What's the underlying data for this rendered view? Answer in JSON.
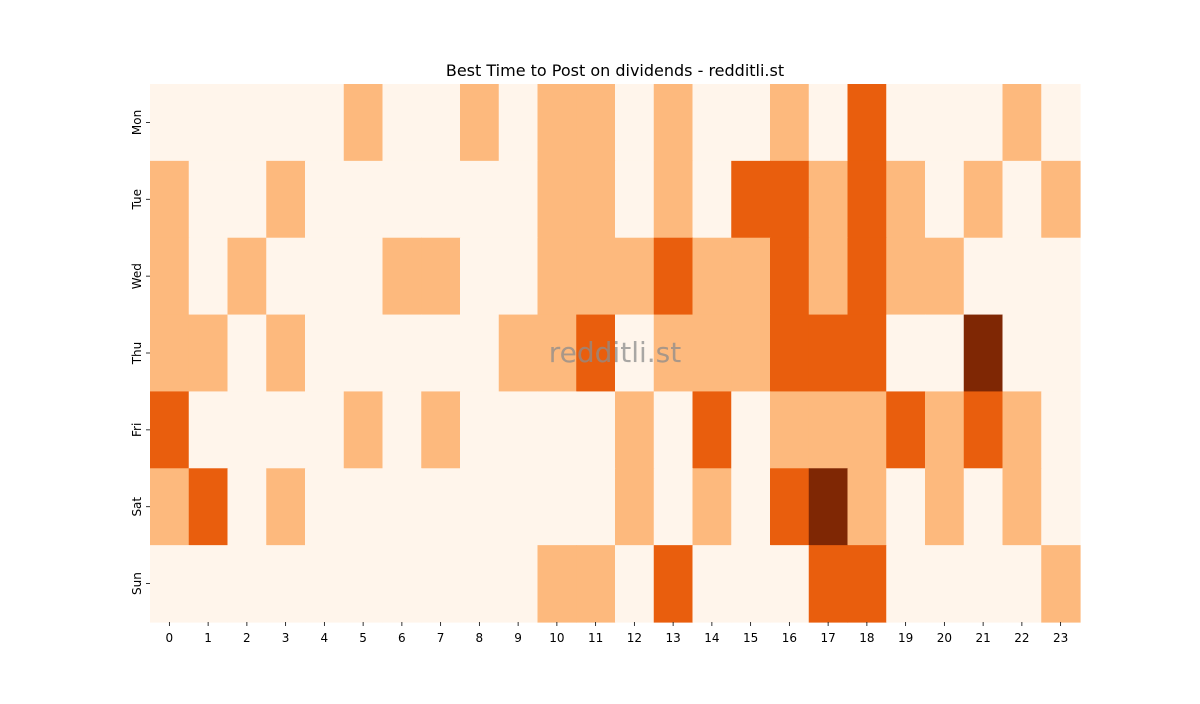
{
  "chart_data": {
    "type": "heatmap",
    "title": "Best Time to Post on dividends - redditli.st",
    "watermark": "redditli.st",
    "xlabel": "",
    "ylabel": "",
    "x_labels": [
      "0",
      "1",
      "2",
      "3",
      "4",
      "5",
      "6",
      "7",
      "8",
      "9",
      "10",
      "11",
      "12",
      "13",
      "14",
      "15",
      "16",
      "17",
      "18",
      "19",
      "20",
      "21",
      "22",
      "23"
    ],
    "y_labels": [
      "Mon",
      "Tue",
      "Wed",
      "Thu",
      "Fri",
      "Sat",
      "Sun"
    ],
    "levels": [
      0,
      1,
      2,
      3
    ],
    "colorscale": [
      "#fff5eb",
      "#fdb97d",
      "#e95e0d",
      "#7f2704"
    ],
    "colorbar": false,
    "grid": false,
    "values": [
      [
        0,
        0,
        0,
        0,
        0,
        1,
        0,
        0,
        1,
        0,
        1,
        1,
        0,
        1,
        0,
        0,
        1,
        0,
        2,
        0,
        0,
        0,
        1,
        0
      ],
      [
        1,
        0,
        0,
        1,
        0,
        0,
        0,
        0,
        0,
        0,
        1,
        1,
        0,
        1,
        0,
        2,
        2,
        1,
        2,
        1,
        0,
        1,
        0,
        1
      ],
      [
        1,
        0,
        1,
        0,
        0,
        0,
        1,
        1,
        0,
        0,
        1,
        1,
        1,
        2,
        1,
        1,
        2,
        1,
        2,
        1,
        1,
        0,
        0,
        0
      ],
      [
        1,
        1,
        0,
        1,
        0,
        0,
        0,
        0,
        0,
        1,
        1,
        2,
        0,
        1,
        1,
        1,
        2,
        2,
        2,
        0,
        0,
        3,
        0,
        0
      ],
      [
        2,
        0,
        0,
        0,
        0,
        1,
        0,
        1,
        0,
        0,
        0,
        0,
        1,
        0,
        2,
        0,
        1,
        1,
        1,
        2,
        1,
        2,
        1,
        0
      ],
      [
        1,
        2,
        0,
        1,
        0,
        0,
        0,
        0,
        0,
        0,
        0,
        0,
        1,
        0,
        1,
        0,
        2,
        3,
        1,
        0,
        1,
        0,
        1,
        0
      ],
      [
        0,
        0,
        0,
        0,
        0,
        0,
        0,
        0,
        0,
        0,
        1,
        1,
        0,
        2,
        0,
        0,
        0,
        2,
        2,
        0,
        0,
        0,
        0,
        1
      ]
    ]
  }
}
